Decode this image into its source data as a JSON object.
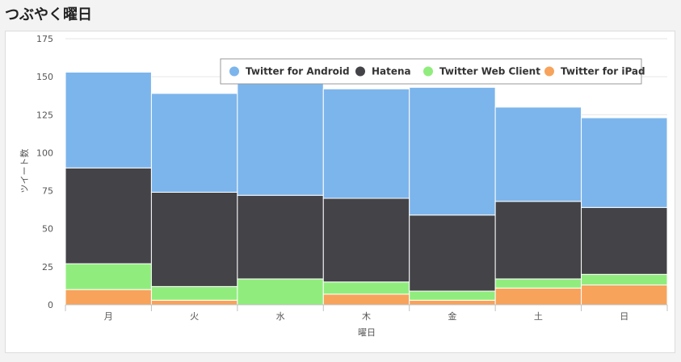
{
  "page": {
    "title": "つぶやく曜日"
  },
  "chart_data": {
    "type": "bar",
    "stacked": true,
    "categories": [
      "月",
      "火",
      "水",
      "木",
      "金",
      "土",
      "日"
    ],
    "xlabel": "曜日",
    "ylabel": "ツイート数",
    "ylim": [
      0,
      175
    ],
    "yticks": [
      0,
      25,
      50,
      75,
      100,
      125,
      150,
      175
    ],
    "grid": true,
    "legend_position": "top-right",
    "series": [
      {
        "name": "Twitter for iPad",
        "color": "#f7a35c",
        "values": [
          10,
          3,
          0,
          7,
          3,
          11,
          13
        ]
      },
      {
        "name": "Twitter Web Client",
        "color": "#90ed7d",
        "values": [
          17,
          9,
          17,
          8,
          6,
          6,
          7
        ]
      },
      {
        "name": "Hatena",
        "color": "#434348",
        "values": [
          63,
          62,
          55,
          55,
          50,
          51,
          44
        ]
      },
      {
        "name": "Twitter for Android",
        "color": "#7cb5ec",
        "values": [
          63,
          65,
          74,
          72,
          84,
          62,
          59
        ]
      }
    ],
    "legend_order": [
      "Twitter for Android",
      "Hatena",
      "Twitter Web Client",
      "Twitter for iPad"
    ]
  }
}
